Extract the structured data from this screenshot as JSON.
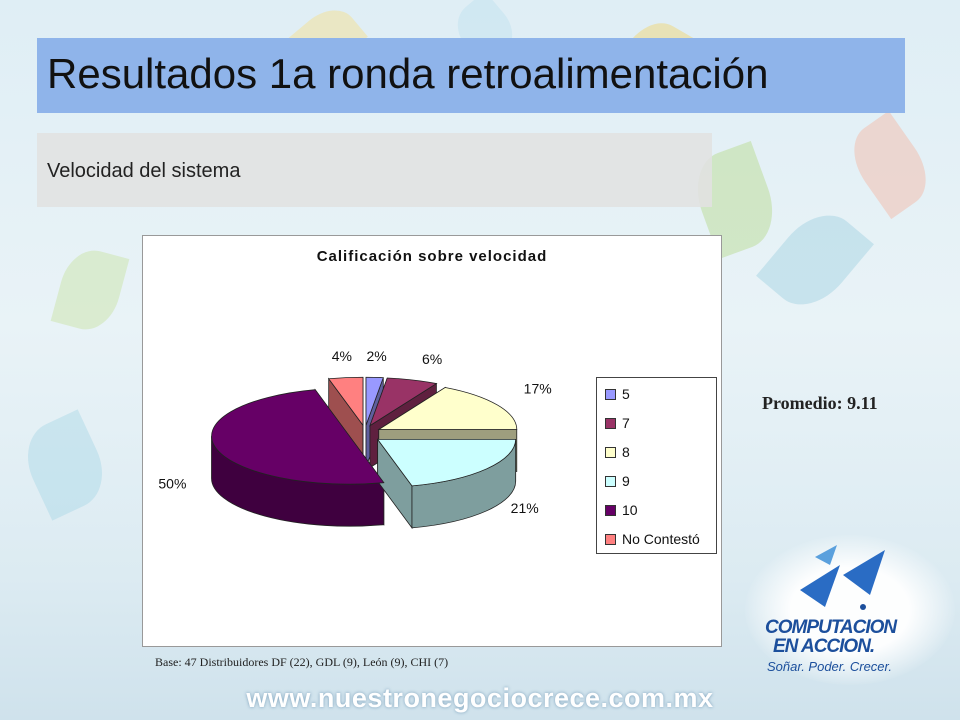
{
  "slide": {
    "title": "Resultados 1a ronda retroalimentación",
    "subtitle": "Velocidad del sistema",
    "promedio": "Promedio: 9.11",
    "base_note": "Base: 47 Distribuidores DF (22), GDL (9), León (9), CHI (7)",
    "footer_url": "www.nuestronegociocrece.com.mx",
    "logo": {
      "line1": "COMPUTACION",
      "line2": "EN ACCION.",
      "tagline": "Soñar. Poder. Crecer."
    },
    "colors": {
      "title_bar": "#8fb4ea",
      "logo_blue": "#1c4f9c"
    }
  },
  "chart_data": {
    "type": "pie",
    "title": "Calificación sobre velocidad",
    "exploded": true,
    "three_d": true,
    "legend_position": "right",
    "slices": [
      {
        "label": "5",
        "value": 2,
        "display": "2%",
        "color": "#9999ff"
      },
      {
        "label": "7",
        "value": 6,
        "display": "6%",
        "color": "#993366"
      },
      {
        "label": "8",
        "value": 17,
        "display": "17%",
        "color": "#ffffcc"
      },
      {
        "label": "9",
        "value": 21,
        "display": "21%",
        "color": "#ccffff"
      },
      {
        "label": "10",
        "value": 50,
        "display": "50%",
        "color": "#660066"
      },
      {
        "label": "No Contestó",
        "value": 4,
        "display": "4%",
        "color": "#ff8080"
      }
    ]
  }
}
